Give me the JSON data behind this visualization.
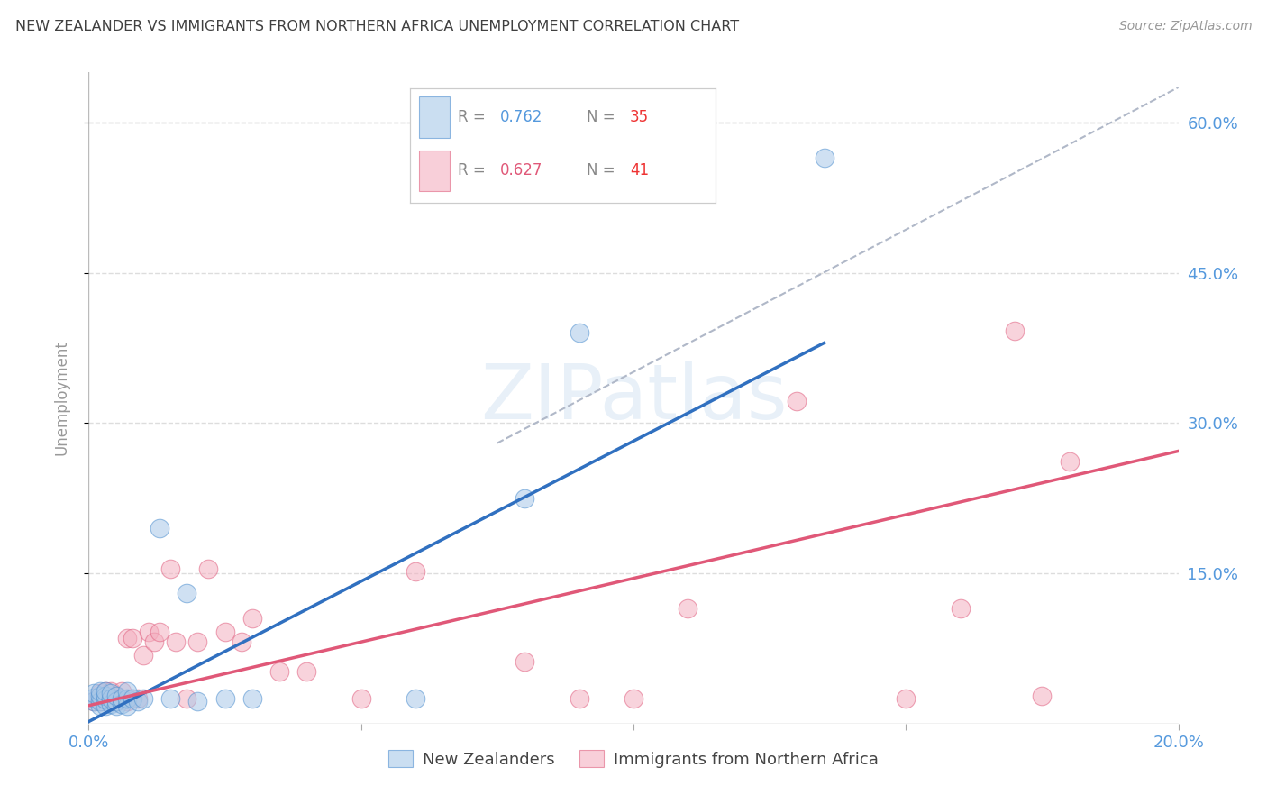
{
  "title": "NEW ZEALANDER VS IMMIGRANTS FROM NORTHERN AFRICA UNEMPLOYMENT CORRELATION CHART",
  "source": "Source: ZipAtlas.com",
  "ylabel": "Unemployment",
  "watermark": "ZIPatlas",
  "xlim": [
    0.0,
    0.2
  ],
  "ylim": [
    0.0,
    0.65
  ],
  "blue_R": "0.762",
  "blue_N": "35",
  "pink_R": "0.627",
  "pink_N": "41",
  "blue_color": "#a8c8e8",
  "pink_color": "#f4b0c0",
  "blue_edge_color": "#5090d0",
  "pink_edge_color": "#e06080",
  "blue_line_color": "#3070c0",
  "pink_line_color": "#e05878",
  "title_color": "#404040",
  "axis_label_color": "#5599dd",
  "background_color": "#ffffff",
  "grid_color": "#dddddd",
  "blue_scatter_x": [
    0.001,
    0.001,
    0.001,
    0.002,
    0.002,
    0.002,
    0.002,
    0.003,
    0.003,
    0.003,
    0.003,
    0.004,
    0.004,
    0.004,
    0.005,
    0.005,
    0.005,
    0.006,
    0.006,
    0.007,
    0.007,
    0.007,
    0.008,
    0.009,
    0.01,
    0.013,
    0.015,
    0.018,
    0.02,
    0.025,
    0.03,
    0.06,
    0.08,
    0.09,
    0.135
  ],
  "blue_scatter_y": [
    0.022,
    0.026,
    0.03,
    0.018,
    0.022,
    0.028,
    0.032,
    0.018,
    0.024,
    0.028,
    0.032,
    0.02,
    0.025,
    0.03,
    0.018,
    0.022,
    0.028,
    0.02,
    0.025,
    0.018,
    0.025,
    0.032,
    0.025,
    0.022,
    0.025,
    0.195,
    0.025,
    0.13,
    0.022,
    0.025,
    0.025,
    0.025,
    0.225,
    0.39,
    0.565
  ],
  "pink_scatter_x": [
    0.001,
    0.002,
    0.002,
    0.003,
    0.003,
    0.004,
    0.004,
    0.005,
    0.005,
    0.006,
    0.006,
    0.007,
    0.007,
    0.008,
    0.009,
    0.01,
    0.011,
    0.012,
    0.013,
    0.015,
    0.016,
    0.018,
    0.02,
    0.022,
    0.025,
    0.028,
    0.03,
    0.035,
    0.04,
    0.05,
    0.06,
    0.08,
    0.09,
    0.1,
    0.11,
    0.13,
    0.15,
    0.16,
    0.17,
    0.175,
    0.18
  ],
  "pink_scatter_y": [
    0.022,
    0.022,
    0.03,
    0.025,
    0.032,
    0.025,
    0.032,
    0.022,
    0.028,
    0.025,
    0.032,
    0.022,
    0.085,
    0.085,
    0.025,
    0.068,
    0.092,
    0.082,
    0.092,
    0.155,
    0.082,
    0.025,
    0.082,
    0.155,
    0.092,
    0.082,
    0.105,
    0.052,
    0.052,
    0.025,
    0.152,
    0.062,
    0.025,
    0.025,
    0.115,
    0.322,
    0.025,
    0.115,
    0.392,
    0.028,
    0.262
  ],
  "blue_line": [
    [
      0.0,
      0.002
    ],
    [
      0.135,
      0.38
    ]
  ],
  "pink_line": [
    [
      0.0,
      0.018
    ],
    [
      0.2,
      0.272
    ]
  ],
  "dash_line": [
    [
      0.075,
      0.28
    ],
    [
      0.2,
      0.635
    ]
  ]
}
